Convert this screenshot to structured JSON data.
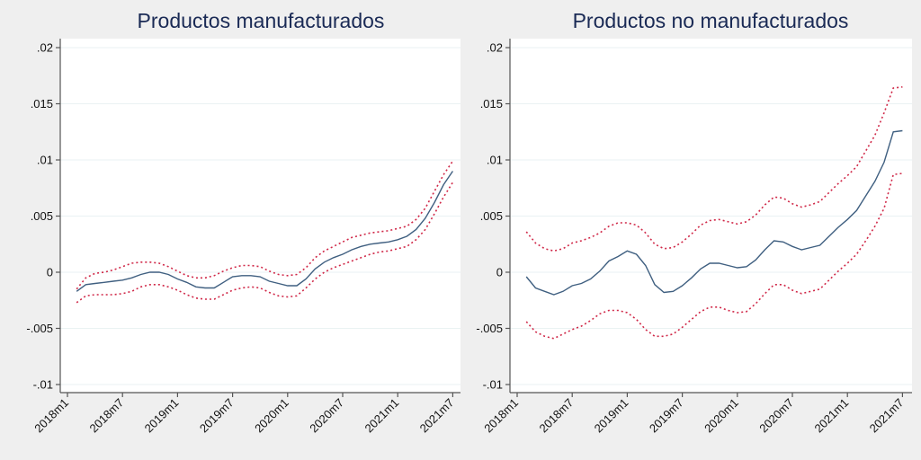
{
  "chart_data": [
    {
      "type": "line",
      "title": "Productos manufacturados",
      "xlabel": "",
      "ylabel": "",
      "ylim": [
        -0.0105,
        0.0205
      ],
      "yticks": [
        0.02,
        0.015,
        0.01,
        0.005,
        0,
        -0.005,
        -0.01
      ],
      "ytick_labels": [
        ".02",
        ".015",
        ".01",
        ".005",
        "0",
        "-.005",
        "-.01"
      ],
      "xticks": [
        "2018m1",
        "2018m7",
        "2019m1",
        "2019m7",
        "2020m1",
        "2020m7",
        "2021m1",
        "2021m7"
      ],
      "x_start": "2018m2",
      "x_end": "2021m7",
      "grid": true,
      "series": [
        {
          "name": "estimate",
          "style": "solid",
          "color": "#3f5f80",
          "values": [
            -0.0017,
            -0.0011,
            -0.001,
            -0.0009,
            -0.0008,
            -0.0007,
            -0.0005,
            -0.0002,
            0.0,
            0.0,
            -0.0002,
            -0.0006,
            -0.0009,
            -0.0013,
            -0.0014,
            -0.0014,
            -0.0009,
            -0.0004,
            -0.0003,
            -0.0003,
            -0.0004,
            -0.0008,
            -0.001,
            -0.0012,
            -0.0012,
            -0.0006,
            0.0003,
            0.0009,
            0.0013,
            0.0016,
            0.002,
            0.0023,
            0.0025,
            0.0026,
            0.0027,
            0.0029,
            0.0032,
            0.0038,
            0.0048,
            0.0062,
            0.0078,
            0.009
          ]
        },
        {
          "name": "upper",
          "style": "dotted",
          "color": "#d02848",
          "values": [
            -0.0015,
            -0.0005,
            -0.0001,
            0.0,
            0.0002,
            0.0005,
            0.0008,
            0.0009,
            0.0009,
            0.0008,
            0.0005,
            0.0001,
            -0.0003,
            -0.0005,
            -0.0005,
            -0.0003,
            0.0001,
            0.0004,
            0.0006,
            0.0006,
            0.0005,
            0.0001,
            -0.0002,
            -0.0003,
            -0.0002,
            0.0004,
            0.0013,
            0.0019,
            0.0023,
            0.0027,
            0.0031,
            0.0033,
            0.0035,
            0.0036,
            0.0037,
            0.0039,
            0.0041,
            0.0047,
            0.0057,
            0.0072,
            0.0087,
            0.0099
          ]
        },
        {
          "name": "lower",
          "style": "dotted",
          "color": "#d02848",
          "values": [
            -0.0027,
            -0.0021,
            -0.002,
            -0.002,
            -0.002,
            -0.0019,
            -0.0017,
            -0.0013,
            -0.0011,
            -0.0011,
            -0.0013,
            -0.0016,
            -0.002,
            -0.0023,
            -0.0024,
            -0.0024,
            -0.002,
            -0.0016,
            -0.0014,
            -0.0013,
            -0.0014,
            -0.0018,
            -0.0021,
            -0.0022,
            -0.0021,
            -0.0014,
            -0.0006,
            0.0,
            0.0004,
            0.0007,
            0.001,
            0.0013,
            0.0016,
            0.0018,
            0.0019,
            0.0021,
            0.0023,
            0.0029,
            0.0038,
            0.0052,
            0.0067,
            0.008
          ]
        }
      ]
    },
    {
      "type": "line",
      "title": "Productos no manufacturados",
      "xlabel": "",
      "ylabel": "",
      "ylim": [
        -0.0105,
        0.0205
      ],
      "yticks": [
        0.02,
        0.015,
        0.01,
        0.005,
        0,
        -0.005,
        -0.01
      ],
      "ytick_labels": [
        ".02",
        ".015",
        ".01",
        ".005",
        "0",
        "-.005",
        "-.01"
      ],
      "xticks": [
        "2018m1",
        "2018m7",
        "2019m1",
        "2019m7",
        "2020m1",
        "2020m7",
        "2021m1",
        "2021m7"
      ],
      "x_start": "2018m2",
      "x_end": "2021m7",
      "grid": true,
      "series": [
        {
          "name": "estimate",
          "style": "solid",
          "color": "#3f5f80",
          "values": [
            -0.0004,
            -0.0014,
            -0.0017,
            -0.002,
            -0.0017,
            -0.0012,
            -0.001,
            -0.0006,
            0.0001,
            0.001,
            0.0014,
            0.0019,
            0.0016,
            0.0006,
            -0.0011,
            -0.0018,
            -0.0017,
            -0.0012,
            -0.0005,
            0.0003,
            0.0008,
            0.0008,
            0.0006,
            0.0004,
            0.0005,
            0.0011,
            0.002,
            0.0028,
            0.0027,
            0.0023,
            0.002,
            0.0022,
            0.0024,
            0.0032,
            0.004,
            0.0047,
            0.0055,
            0.0068,
            0.0081,
            0.0098,
            0.0125,
            0.0126
          ]
        },
        {
          "name": "upper",
          "style": "dotted",
          "color": "#d02848",
          "values": [
            0.0036,
            0.0026,
            0.0021,
            0.0019,
            0.0021,
            0.0026,
            0.0028,
            0.0031,
            0.0035,
            0.0041,
            0.0044,
            0.0044,
            0.0042,
            0.0035,
            0.0025,
            0.0021,
            0.0022,
            0.0027,
            0.0034,
            0.0042,
            0.0046,
            0.0047,
            0.0045,
            0.0043,
            0.0045,
            0.0051,
            0.006,
            0.0067,
            0.0066,
            0.0061,
            0.0058,
            0.006,
            0.0063,
            0.0071,
            0.0079,
            0.0086,
            0.0094,
            0.0108,
            0.0122,
            0.0142,
            0.0164,
            0.0165
          ]
        },
        {
          "name": "lower",
          "style": "dotted",
          "color": "#d02848",
          "values": [
            -0.0044,
            -0.0053,
            -0.0057,
            -0.0059,
            -0.0055,
            -0.0051,
            -0.0048,
            -0.0043,
            -0.0037,
            -0.0034,
            -0.0034,
            -0.0036,
            -0.0042,
            -0.0051,
            -0.0057,
            -0.0057,
            -0.0055,
            -0.0049,
            -0.0042,
            -0.0035,
            -0.0031,
            -0.0031,
            -0.0034,
            -0.0036,
            -0.0035,
            -0.0028,
            -0.0019,
            -0.0011,
            -0.0011,
            -0.0016,
            -0.0019,
            -0.0017,
            -0.0015,
            -0.0007,
            0.0001,
            0.0008,
            0.0016,
            0.0028,
            0.0041,
            0.0057,
            0.0087,
            0.0088
          ]
        }
      ]
    }
  ]
}
